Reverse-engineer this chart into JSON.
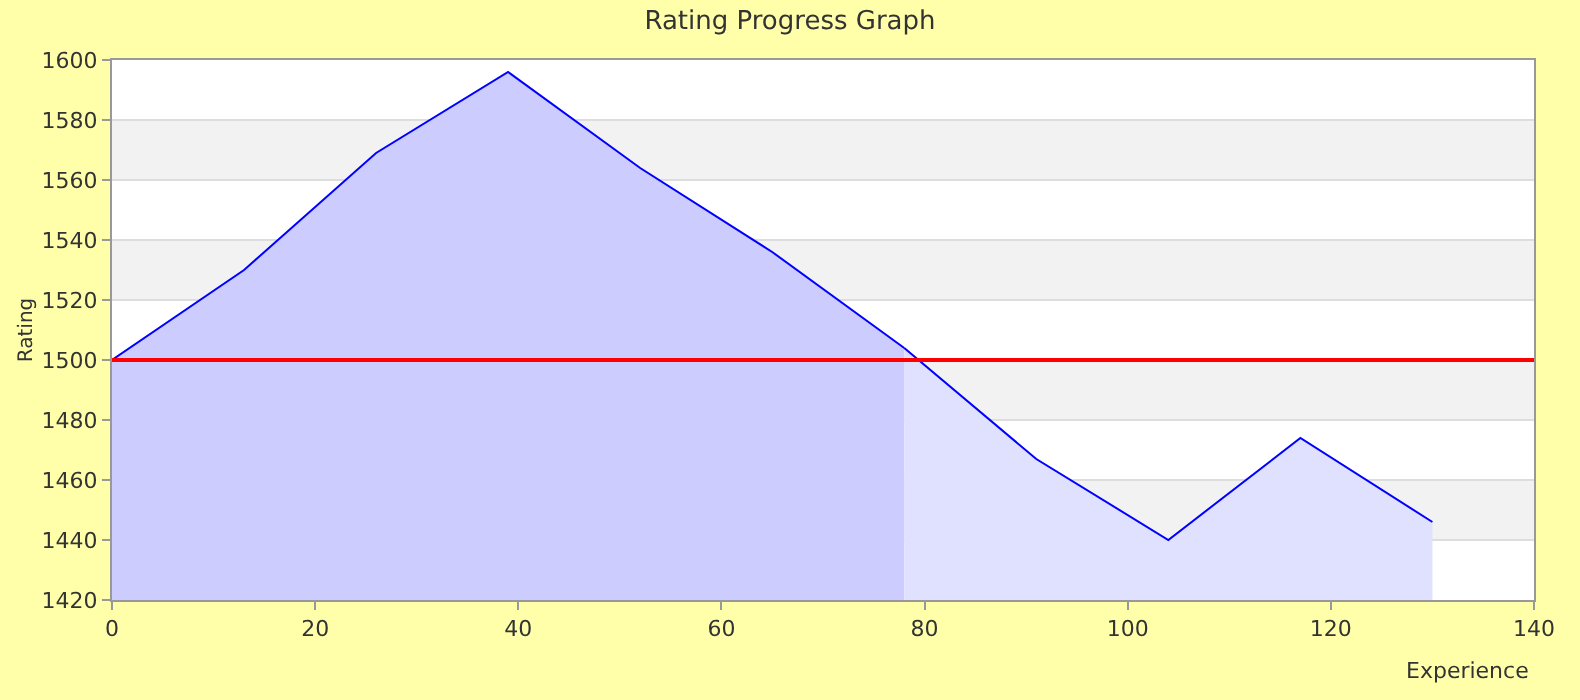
{
  "chart_data": {
    "type": "area",
    "title": "Rating Progress Graph",
    "xlabel": "Experience",
    "ylabel": "Rating",
    "series": [
      {
        "x": [
          0,
          13,
          26,
          39,
          52,
          65,
          78
        ],
        "values": [
          1500,
          1530,
          1569,
          1596,
          1564,
          1536,
          1504
        ],
        "color": "#ccccff"
      },
      {
        "x": [
          78,
          91,
          104,
          117,
          130
        ],
        "values": [
          1504,
          1467,
          1440,
          1474,
          1446
        ],
        "color": "#e0e0ff"
      }
    ],
    "xlim": [
      0,
      140
    ],
    "xticks": [
      0,
      20,
      40,
      60,
      80,
      100,
      120,
      140
    ],
    "ylim": [
      1420,
      1600
    ],
    "yticks": [
      1420,
      1440,
      1460,
      1480,
      1500,
      1520,
      1540,
      1560,
      1580,
      1600
    ],
    "grid": "y",
    "marker": "none",
    "line_style": "solid",
    "ref_lines": [
      {
        "axis": "y",
        "value": 1500,
        "color": "#ff0000"
      }
    ]
  }
}
